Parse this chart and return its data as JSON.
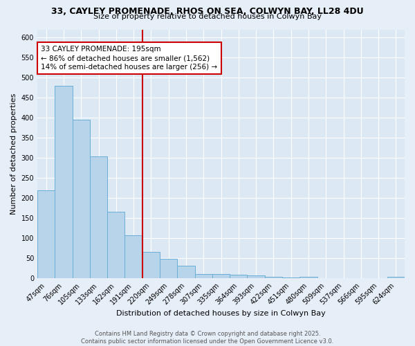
{
  "title1": "33, CAYLEY PROMENADE, RHOS ON SEA, COLWYN BAY, LL28 4DU",
  "title2": "Size of property relative to detached houses in Colwyn Bay",
  "xlabel": "Distribution of detached houses by size in Colwyn Bay",
  "ylabel": "Number of detached properties",
  "categories": [
    "47sqm",
    "76sqm",
    "105sqm",
    "133sqm",
    "162sqm",
    "191sqm",
    "220sqm",
    "249sqm",
    "278sqm",
    "307sqm",
    "335sqm",
    "364sqm",
    "393sqm",
    "422sqm",
    "451sqm",
    "480sqm",
    "509sqm",
    "537sqm",
    "566sqm",
    "595sqm",
    "624sqm"
  ],
  "values": [
    220,
    480,
    395,
    303,
    165,
    107,
    65,
    48,
    32,
    10,
    10,
    9,
    7,
    4,
    2,
    3,
    1,
    1,
    1,
    1,
    4
  ],
  "bar_color": "#b8d4ea",
  "bar_edge_color": "#6aaed6",
  "red_line_index": 5,
  "annotation_text": "33 CAYLEY PROMENADE: 195sqm\n← 86% of detached houses are smaller (1,562)\n14% of semi-detached houses are larger (256) →",
  "annotation_box_color": "#ffffff",
  "annotation_box_edge": "#cc0000",
  "ylim": [
    0,
    620
  ],
  "yticks": [
    0,
    50,
    100,
    150,
    200,
    250,
    300,
    350,
    400,
    450,
    500,
    550,
    600
  ],
  "footer": "Contains HM Land Registry data © Crown copyright and database right 2025.\nContains public sector information licensed under the Open Government Licence v3.0.",
  "bg_color": "#e6eef8",
  "plot_bg_color": "#dce8f4",
  "grid_color": "#ffffff",
  "title1_fontsize": 9,
  "title2_fontsize": 8,
  "xlabel_fontsize": 8,
  "ylabel_fontsize": 8,
  "tick_fontsize": 7,
  "footer_fontsize": 6,
  "ann_fontsize": 7.5
}
